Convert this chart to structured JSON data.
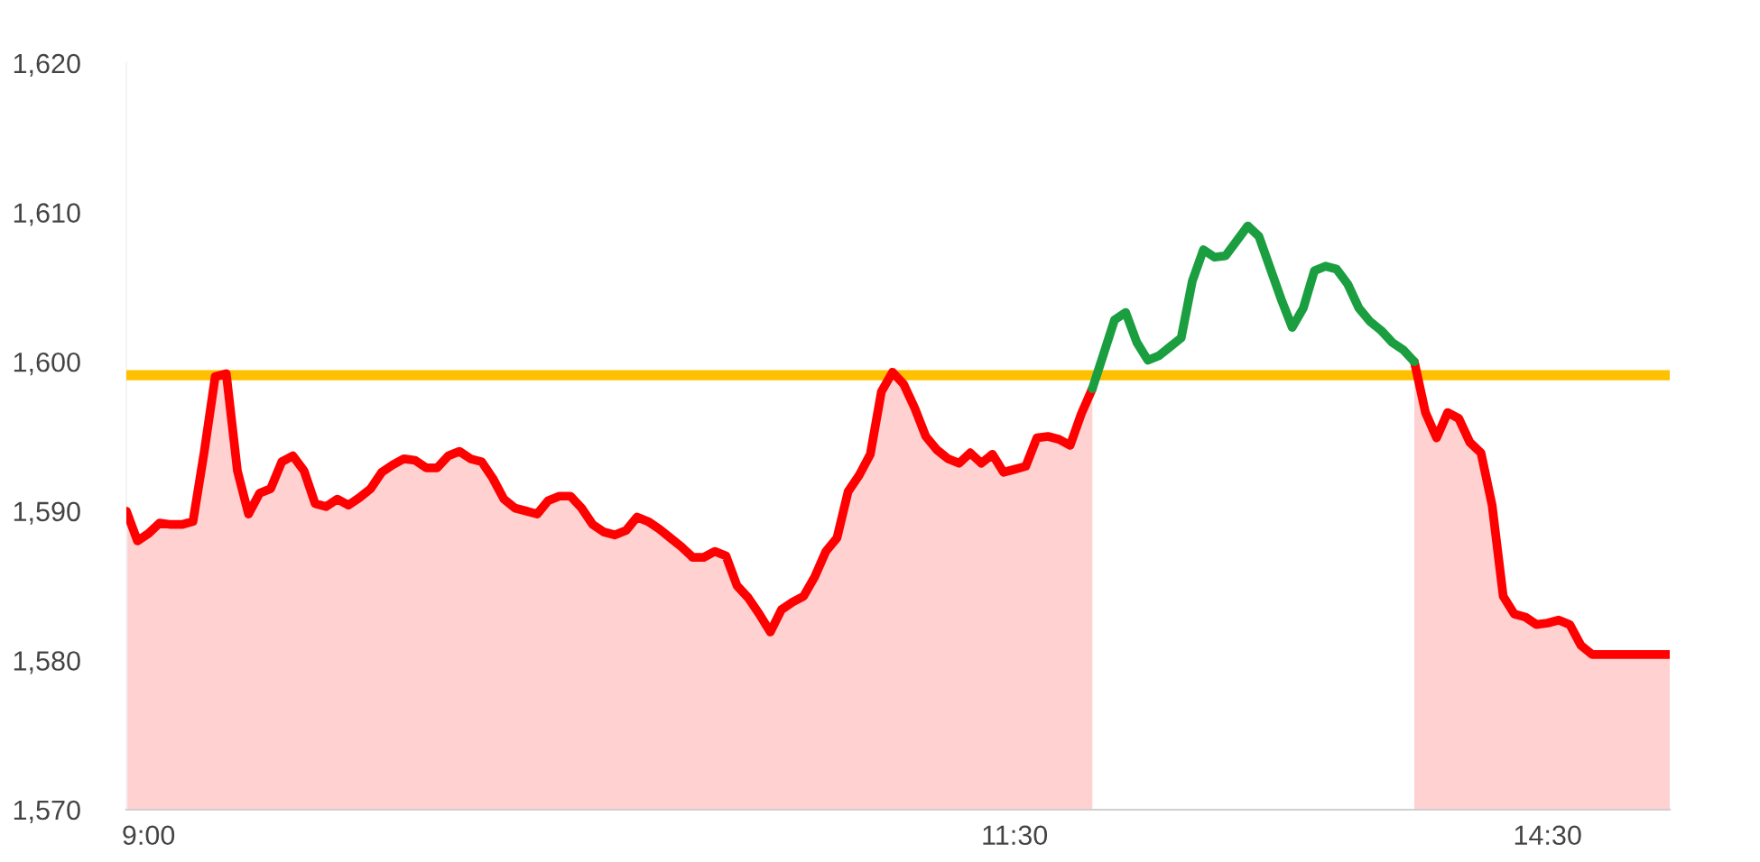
{
  "chart_data": {
    "type": "line",
    "categories": [
      null,
      null,
      "9:00",
      null,
      null,
      null,
      null,
      null,
      null,
      null,
      null,
      null,
      null,
      null,
      null,
      null,
      null,
      null,
      null,
      null,
      null,
      null,
      null,
      null,
      null,
      null,
      null,
      null,
      null,
      null,
      null,
      null,
      null,
      null,
      null,
      null,
      null,
      null,
      null,
      null,
      null,
      null,
      null,
      null,
      null,
      null,
      null,
      null,
      null,
      null,
      null,
      null,
      null,
      null,
      null,
      null,
      null,
      null,
      null,
      null,
      null,
      null,
      null,
      null,
      null,
      null,
      null,
      null,
      null,
      null,
      null,
      null,
      null,
      null,
      null,
      null,
      null,
      null,
      null,
      null,
      "11:30",
      null,
      null,
      null,
      null,
      null,
      null,
      null,
      null,
      null,
      null,
      null,
      null,
      null,
      null,
      null,
      null,
      null,
      null,
      null,
      null,
      null,
      null,
      null,
      null,
      null,
      null,
      null,
      null,
      null,
      null,
      null,
      null,
      null,
      null,
      null,
      null,
      null,
      null,
      null,
      null,
      null,
      null,
      null,
      null,
      null,
      null,
      null,
      "14:30",
      null,
      null,
      null,
      null,
      null,
      null,
      null,
      null,
      null,
      null,
      null
    ],
    "series": [
      {
        "type": "area",
        "color": "#ff0000",
        "values": [
          1590.0,
          1588.0,
          1588.5,
          1589.2,
          1589.1,
          1589.1,
          1589.3,
          1593.9,
          1599.0,
          1599.2,
          1592.7,
          1589.8,
          1591.2,
          1591.5,
          1593.3,
          1593.7,
          1592.7,
          1590.5,
          1590.3,
          1590.8,
          1590.4,
          1590.9,
          1591.5,
          1592.6,
          1593.1,
          1593.5,
          1593.4,
          1592.9,
          1592.9,
          1593.7,
          1594.0,
          1593.5,
          1593.3,
          1592.2,
          1590.8,
          1590.2,
          1590.0,
          1589.8,
          1590.7,
          1591.0,
          1591.0,
          1590.2,
          1589.1,
          1588.6,
          1588.4,
          1588.7,
          1589.6,
          1589.3,
          1588.8,
          1588.2,
          1587.6,
          1586.9,
          1586.9,
          1587.3,
          1587.0,
          1585.0,
          1584.2,
          1583.1,
          1581.9,
          1583.4,
          1583.9,
          1584.3,
          1585.6,
          1587.3,
          1588.2,
          1591.3,
          1592.4,
          1593.8,
          1598.0,
          1599.3,
          1598.5,
          1596.9,
          1595.0,
          1594.1,
          1593.5,
          1593.2,
          1593.9,
          1593.2,
          1593.8,
          1592.6,
          1592.8,
          1593.0,
          1594.9,
          1595.0,
          1594.8,
          1594.4,
          1596.5,
          1598.2,
          null,
          null,
          null,
          null,
          null,
          null,
          null,
          null,
          null,
          null,
          null,
          null,
          null,
          null,
          null,
          null,
          null,
          null,
          null,
          null,
          null,
          null,
          null,
          null,
          null,
          null,
          null,
          null,
          1600.0,
          1596.6,
          1594.9,
          1596.6,
          1596.2,
          1594.6,
          1593.9,
          1590.4,
          1584.3,
          1583.1,
          1582.9,
          1582.4,
          1582.5,
          1582.7,
          1582.4,
          1581.0,
          1580.4,
          1580.4,
          1580.4,
          1580.4,
          1580.4,
          1580.4,
          1580.4,
          1580.4
        ]
      },
      {
        "color": "#1a9e3f",
        "values": [
          null,
          null,
          null,
          null,
          null,
          null,
          null,
          null,
          null,
          null,
          null,
          null,
          null,
          null,
          null,
          null,
          null,
          null,
          null,
          null,
          null,
          null,
          null,
          null,
          null,
          null,
          null,
          null,
          null,
          null,
          null,
          null,
          null,
          null,
          null,
          null,
          null,
          null,
          null,
          null,
          null,
          null,
          null,
          null,
          null,
          null,
          null,
          null,
          null,
          null,
          null,
          null,
          null,
          null,
          null,
          null,
          null,
          null,
          null,
          null,
          null,
          null,
          null,
          null,
          null,
          null,
          null,
          null,
          null,
          null,
          null,
          null,
          null,
          null,
          null,
          null,
          null,
          null,
          null,
          null,
          null,
          null,
          null,
          null,
          null,
          null,
          null,
          1598.2,
          1600.5,
          1602.8,
          1603.3,
          1601.3,
          1600.1,
          1600.4,
          1601.0,
          1601.6,
          1605.4,
          1607.5,
          1607.0,
          1607.1,
          1608.1,
          1609.1,
          1608.4,
          1606.3,
          1604.2,
          1602.3,
          1603.6,
          1606.1,
          1606.4,
          1606.2,
          1605.2,
          1603.6,
          1602.7,
          1602.1,
          1601.3,
          1600.8,
          1600.0,
          null,
          null,
          null,
          null,
          null,
          null,
          null,
          null,
          null,
          null,
          null,
          null,
          null,
          null,
          null,
          null,
          null,
          null,
          null,
          null,
          null,
          null,
          null
        ]
      }
    ],
    "ylim": [
      1570,
      1620
    ],
    "yticks": [
      {
        "value": 1570,
        "label": "1,570"
      },
      {
        "value": 1580,
        "label": "1,580"
      },
      {
        "value": 1590,
        "label": "1,590"
      },
      {
        "value": 1600,
        "label": "1,600"
      },
      {
        "value": 1610,
        "label": "1,610"
      },
      {
        "value": 1620,
        "label": "1,620"
      }
    ],
    "ref_lines": [
      {
        "axis": "y",
        "value": 1599.1,
        "color": "#ffc000"
      }
    ],
    "grid": false
  }
}
